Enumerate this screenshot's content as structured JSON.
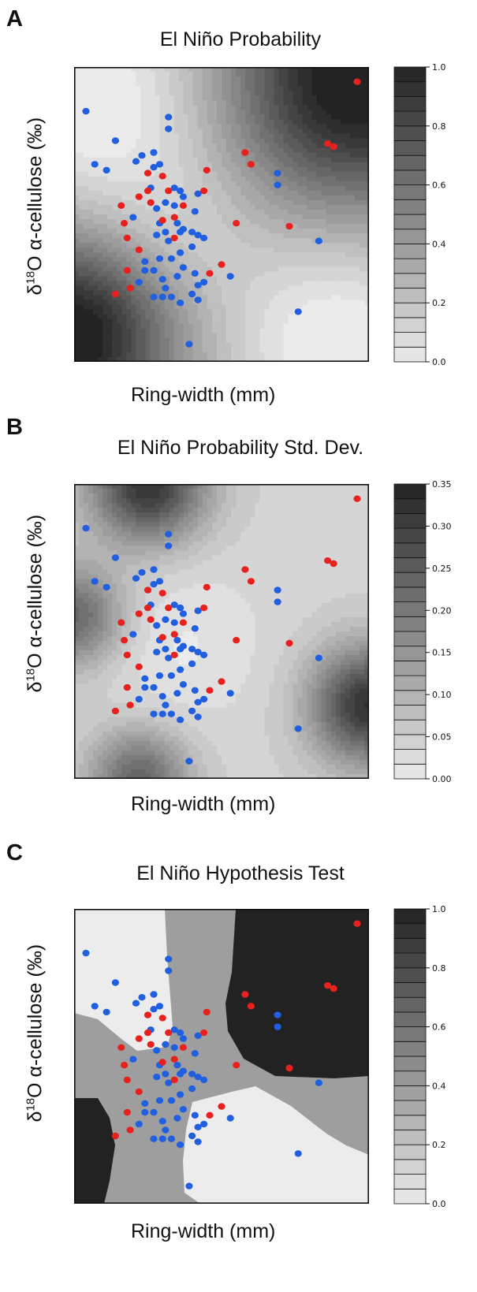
{
  "colors": {
    "el_nino_point": "#e8211e",
    "other_point": "#1f5fe0",
    "frame": "#111111"
  },
  "chart_data": [
    {
      "type": "scatter",
      "panel_label": "A",
      "title": "El Niño Probability",
      "xlabel": "Ring-width (mm)",
      "ylabel_prefix": "δ",
      "ylabel_sup": "18",
      "ylabel_rest": "O α-cellulose (‰)",
      "background": "grayscale probability surface",
      "colorbar": {
        "min": 0.0,
        "max": 1.0,
        "ticks": [
          "0.0",
          "0.2",
          "0.4",
          "0.6",
          "0.8",
          "1.0"
        ]
      }
    },
    {
      "type": "scatter",
      "panel_label": "B",
      "title": "El Niño Probability Std. Dev.",
      "xlabel": "Ring-width (mm)",
      "ylabel_prefix": "δ",
      "ylabel_sup": "18",
      "ylabel_rest": "O α-cellulose (‰)",
      "background": "grayscale standard deviation surface",
      "colorbar": {
        "min": 0.0,
        "max": 0.35,
        "ticks": [
          "0.00",
          "0.05",
          "0.10",
          "0.15",
          "0.20",
          "0.25",
          "0.30",
          "0.35"
        ]
      }
    },
    {
      "type": "scatter",
      "panel_label": "C",
      "title": "El Niño Hypothesis Test",
      "xlabel": "Ring-width (mm)",
      "ylabel_prefix": "δ",
      "ylabel_sup": "18",
      "ylabel_rest": "O α-cellulose (‰)",
      "background": "grayscale hypothesis test regions",
      "colorbar": {
        "min": 0.0,
        "max": 1.0,
        "ticks": [
          "0.0",
          "0.2",
          "0.4",
          "0.6",
          "0.8",
          "1.0"
        ]
      }
    }
  ],
  "points": {
    "el_nino": [
      [
        0.96,
        0.95
      ],
      [
        0.86,
        0.74
      ],
      [
        0.88,
        0.73
      ],
      [
        0.58,
        0.71
      ],
      [
        0.6,
        0.67
      ],
      [
        0.45,
        0.65
      ],
      [
        0.25,
        0.64
      ],
      [
        0.3,
        0.63
      ],
      [
        0.32,
        0.58
      ],
      [
        0.25,
        0.58
      ],
      [
        0.44,
        0.58
      ],
      [
        0.22,
        0.56
      ],
      [
        0.16,
        0.53
      ],
      [
        0.26,
        0.54
      ],
      [
        0.37,
        0.53
      ],
      [
        0.34,
        0.49
      ],
      [
        0.17,
        0.47
      ],
      [
        0.55,
        0.47
      ],
      [
        0.3,
        0.48
      ],
      [
        0.73,
        0.46
      ],
      [
        0.18,
        0.42
      ],
      [
        0.34,
        0.42
      ],
      [
        0.22,
        0.38
      ],
      [
        0.5,
        0.33
      ],
      [
        0.18,
        0.31
      ],
      [
        0.46,
        0.3
      ],
      [
        0.19,
        0.25
      ],
      [
        0.14,
        0.23
      ]
    ],
    "other": [
      [
        0.04,
        0.85
      ],
      [
        0.32,
        0.83
      ],
      [
        0.32,
        0.79
      ],
      [
        0.14,
        0.75
      ],
      [
        0.07,
        0.67
      ],
      [
        0.11,
        0.65
      ],
      [
        0.23,
        0.7
      ],
      [
        0.27,
        0.71
      ],
      [
        0.21,
        0.68
      ],
      [
        0.29,
        0.67
      ],
      [
        0.27,
        0.66
      ],
      [
        0.26,
        0.59
      ],
      [
        0.34,
        0.59
      ],
      [
        0.36,
        0.58
      ],
      [
        0.37,
        0.56
      ],
      [
        0.31,
        0.54
      ],
      [
        0.28,
        0.52
      ],
      [
        0.34,
        0.53
      ],
      [
        0.41,
        0.51
      ],
      [
        0.42,
        0.57
      ],
      [
        0.2,
        0.49
      ],
      [
        0.29,
        0.47
      ],
      [
        0.35,
        0.47
      ],
      [
        0.37,
        0.45
      ],
      [
        0.31,
        0.44
      ],
      [
        0.28,
        0.43
      ],
      [
        0.36,
        0.44
      ],
      [
        0.4,
        0.44
      ],
      [
        0.42,
        0.43
      ],
      [
        0.44,
        0.42
      ],
      [
        0.32,
        0.41
      ],
      [
        0.4,
        0.39
      ],
      [
        0.36,
        0.37
      ],
      [
        0.33,
        0.35
      ],
      [
        0.29,
        0.35
      ],
      [
        0.24,
        0.34
      ],
      [
        0.24,
        0.31
      ],
      [
        0.27,
        0.31
      ],
      [
        0.37,
        0.32
      ],
      [
        0.41,
        0.3
      ],
      [
        0.44,
        0.27
      ],
      [
        0.42,
        0.26
      ],
      [
        0.53,
        0.29
      ],
      [
        0.35,
        0.29
      ],
      [
        0.3,
        0.28
      ],
      [
        0.22,
        0.27
      ],
      [
        0.31,
        0.25
      ],
      [
        0.3,
        0.22
      ],
      [
        0.27,
        0.22
      ],
      [
        0.33,
        0.22
      ],
      [
        0.36,
        0.2
      ],
      [
        0.4,
        0.23
      ],
      [
        0.42,
        0.21
      ],
      [
        0.69,
        0.64
      ],
      [
        0.69,
        0.6
      ],
      [
        0.83,
        0.41
      ],
      [
        0.76,
        0.17
      ],
      [
        0.39,
        0.06
      ]
    ]
  }
}
